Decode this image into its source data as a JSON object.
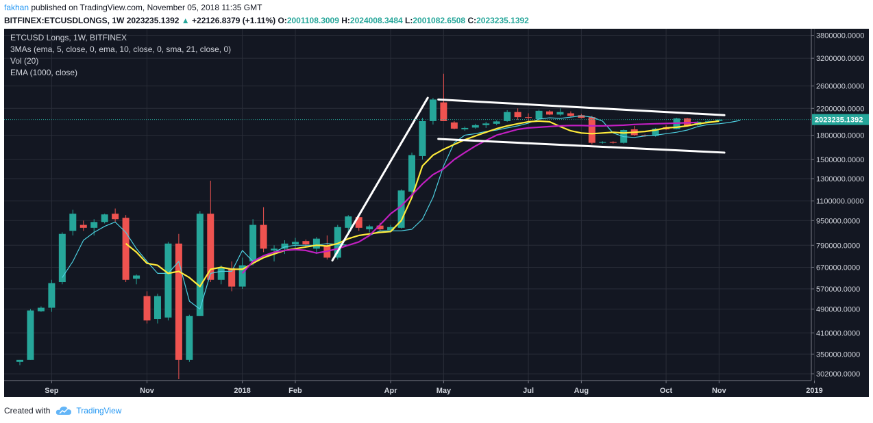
{
  "header": {
    "author": "fakhan",
    "published_text": "published on TradingView.com, November 05, 2018 11:35 GMT"
  },
  "quote": {
    "symbol_line": "BITFINEX:ETCUSDLONGS, 1W",
    "last": "2023235.1392",
    "change": "+22126.8379 (+1.11%)",
    "o_label": "O:",
    "o": "2001108.3009",
    "h_label": "H:",
    "h": "2024008.3484",
    "l_label": "L:",
    "l": "2001082.6508",
    "c_label": "C:",
    "c": "2023235.1392"
  },
  "legend": [
    "ETCUSD Longs, 1W, BITFINEX",
    "3MAs (ema, 5, close, 0, ema, 10, close, 0, sma, 21, close, 0)",
    "Vol (20)",
    "EMA (1000, close)"
  ],
  "footer": {
    "created_with": "Created with",
    "brand": "TradingView"
  },
  "colors": {
    "background": "#131722",
    "grid": "#2a2e39",
    "up": "#26a69a",
    "down": "#ef5350",
    "ema5": "#4dd0e1",
    "ema10": "#ffeb3b",
    "sma21": "#c21fc2",
    "trendline": "#ffffff",
    "price_line": "#26a69a",
    "axis_text": "#d1d4dc"
  },
  "chart_data": {
    "type": "candlestick",
    "scale": "log",
    "ylim": [
      290000,
      3950000
    ],
    "y_ticks": [
      302000,
      350000,
      410000,
      490000,
      570000,
      670000,
      790000,
      950000,
      1100000,
      1300000,
      1500000,
      1800000,
      2200000,
      2600000,
      3200000,
      3800000
    ],
    "y_tick_labels": [
      "302000.0000",
      "350000.0000",
      "410000.0000",
      "490000.0000",
      "570000.0000",
      "670000.0000",
      "790000.0000",
      "950000.0000",
      "1100000.0000",
      "1300000.0000",
      "1500000.0000",
      "1800000.0000",
      "2200000.0000",
      "2600000.0000",
      "3200000.0000",
      "3800000.0000"
    ],
    "x_ticks": [
      {
        "week": 3,
        "label": "Sep"
      },
      {
        "week": 12,
        "label": "Nov"
      },
      {
        "week": 21,
        "label": "2018"
      },
      {
        "week": 26,
        "label": "Feb"
      },
      {
        "week": 35,
        "label": "Apr"
      },
      {
        "week": 40,
        "label": "May"
      },
      {
        "week": 48,
        "label": "Jul"
      },
      {
        "week": 53,
        "label": "Aug"
      },
      {
        "week": 61,
        "label": "Oct"
      },
      {
        "week": 66,
        "label": "Nov"
      },
      {
        "week": 75,
        "label": "2019"
      }
    ],
    "last_price": 2023235.1392,
    "last_price_label": "2023235.1392",
    "candles": [
      {
        "o": 330000,
        "h": 335000,
        "l": 322000,
        "c": 335000
      },
      {
        "o": 335000,
        "h": 490000,
        "l": 335000,
        "c": 485000
      },
      {
        "o": 482000,
        "h": 500000,
        "l": 480000,
        "c": 495000
      },
      {
        "o": 495000,
        "h": 610000,
        "l": 480000,
        "c": 595000
      },
      {
        "o": 600000,
        "h": 870000,
        "l": 590000,
        "c": 860000
      },
      {
        "o": 880000,
        "h": 1030000,
        "l": 850000,
        "c": 1000000
      },
      {
        "o": 920000,
        "h": 950000,
        "l": 880000,
        "c": 900000
      },
      {
        "o": 900000,
        "h": 960000,
        "l": 850000,
        "c": 940000
      },
      {
        "o": 940000,
        "h": 1000000,
        "l": 930000,
        "c": 995000
      },
      {
        "o": 1000000,
        "h": 1040000,
        "l": 940000,
        "c": 960000
      },
      {
        "o": 970000,
        "h": 990000,
        "l": 600000,
        "c": 610000
      },
      {
        "o": 615000,
        "h": 635000,
        "l": 590000,
        "c": 630000
      },
      {
        "o": 540000,
        "h": 560000,
        "l": 440000,
        "c": 450000
      },
      {
        "o": 455000,
        "h": 550000,
        "l": 440000,
        "c": 540000
      },
      {
        "o": 460000,
        "h": 810000,
        "l": 450000,
        "c": 800000
      },
      {
        "o": 800000,
        "h": 860000,
        "l": 290000,
        "c": 335000
      },
      {
        "o": 335000,
        "h": 470000,
        "l": 330000,
        "c": 465000
      },
      {
        "o": 465000,
        "h": 1020000,
        "l": 465000,
        "c": 1000000
      },
      {
        "o": 1000000,
        "h": 1280000,
        "l": 600000,
        "c": 610000
      },
      {
        "o": 610000,
        "h": 680000,
        "l": 590000,
        "c": 665000
      },
      {
        "o": 665000,
        "h": 700000,
        "l": 560000,
        "c": 580000
      },
      {
        "o": 580000,
        "h": 720000,
        "l": 570000,
        "c": 680000
      },
      {
        "o": 700000,
        "h": 960000,
        "l": 680000,
        "c": 920000
      },
      {
        "o": 920000,
        "h": 1050000,
        "l": 750000,
        "c": 770000
      },
      {
        "o": 760000,
        "h": 790000,
        "l": 700000,
        "c": 770000
      },
      {
        "o": 770000,
        "h": 820000,
        "l": 740000,
        "c": 800000
      },
      {
        "o": 795000,
        "h": 835000,
        "l": 760000,
        "c": 810000
      },
      {
        "o": 815000,
        "h": 825000,
        "l": 780000,
        "c": 795000
      },
      {
        "o": 770000,
        "h": 840000,
        "l": 740000,
        "c": 830000
      },
      {
        "o": 790000,
        "h": 850000,
        "l": 710000,
        "c": 720000
      },
      {
        "o": 720000,
        "h": 920000,
        "l": 710000,
        "c": 905000
      },
      {
        "o": 900000,
        "h": 990000,
        "l": 860000,
        "c": 980000
      },
      {
        "o": 975000,
        "h": 985000,
        "l": 880000,
        "c": 900000
      },
      {
        "o": 890000,
        "h": 920000,
        "l": 870000,
        "c": 910000
      },
      {
        "o": 915000,
        "h": 935000,
        "l": 880000,
        "c": 890000
      },
      {
        "o": 885000,
        "h": 920000,
        "l": 870000,
        "c": 905000
      },
      {
        "o": 900000,
        "h": 1200000,
        "l": 895000,
        "c": 1190000
      },
      {
        "o": 1180000,
        "h": 1580000,
        "l": 1150000,
        "c": 1550000
      },
      {
        "o": 1540000,
        "h": 2050000,
        "l": 1500000,
        "c": 2000000
      },
      {
        "o": 2000000,
        "h": 2380000,
        "l": 1950000,
        "c": 2350000
      },
      {
        "o": 2300000,
        "h": 2850000,
        "l": 2000000,
        "c": 2000000
      },
      {
        "o": 1980000,
        "h": 2000000,
        "l": 1880000,
        "c": 1890000
      },
      {
        "o": 1880000,
        "h": 1920000,
        "l": 1860000,
        "c": 1900000
      },
      {
        "o": 1905000,
        "h": 1960000,
        "l": 1890000,
        "c": 1940000
      },
      {
        "o": 1940000,
        "h": 1990000,
        "l": 1900000,
        "c": 1965000
      },
      {
        "o": 1960000,
        "h": 2010000,
        "l": 1940000,
        "c": 1995000
      },
      {
        "o": 2000000,
        "h": 2170000,
        "l": 1990000,
        "c": 2140000
      },
      {
        "o": 2140000,
        "h": 2200000,
        "l": 2020000,
        "c": 2060000
      },
      {
        "o": 2060000,
        "h": 2120000,
        "l": 2000000,
        "c": 2050000
      },
      {
        "o": 2030000,
        "h": 2180000,
        "l": 2020000,
        "c": 2160000
      },
      {
        "o": 2150000,
        "h": 2170000,
        "l": 2090000,
        "c": 2100000
      },
      {
        "o": 2100000,
        "h": 2200000,
        "l": 2080000,
        "c": 2140000
      },
      {
        "o": 2120000,
        "h": 2150000,
        "l": 2070000,
        "c": 2080000
      },
      {
        "o": 2090000,
        "h": 2110000,
        "l": 2040000,
        "c": 2050000
      },
      {
        "o": 2060000,
        "h": 2080000,
        "l": 1680000,
        "c": 1700000
      },
      {
        "o": 1700000,
        "h": 1720000,
        "l": 1690000,
        "c": 1710000
      },
      {
        "o": 1710000,
        "h": 1720000,
        "l": 1690000,
        "c": 1700000
      },
      {
        "o": 1700000,
        "h": 1880000,
        "l": 1690000,
        "c": 1870000
      },
      {
        "o": 1880000,
        "h": 1930000,
        "l": 1790000,
        "c": 1800000
      },
      {
        "o": 1800000,
        "h": 1810000,
        "l": 1780000,
        "c": 1790000
      },
      {
        "o": 1790000,
        "h": 1900000,
        "l": 1780000,
        "c": 1890000
      },
      {
        "o": 1910000,
        "h": 1940000,
        "l": 1870000,
        "c": 1880000
      },
      {
        "o": 1885000,
        "h": 2050000,
        "l": 1880000,
        "c": 2040000
      },
      {
        "o": 2040000,
        "h": 2050000,
        "l": 1920000,
        "c": 1930000
      },
      {
        "o": 1940000,
        "h": 2000000,
        "l": 1930000,
        "c": 1990000
      },
      {
        "o": 1990000,
        "h": 2010000,
        "l": 1980000,
        "c": 2001108
      },
      {
        "o": 2001108,
        "h": 2024008,
        "l": 2001082,
        "c": 2023235
      }
    ],
    "series": [
      {
        "name": "ema 5",
        "color": "#4dd0e1",
        "start": 4,
        "values": [
          620000,
          700000,
          820000,
          870000,
          910000,
          940000,
          870000,
          770000,
          700000,
          640000,
          640000,
          700000,
          520000,
          490000,
          640000,
          650000,
          650000,
          760000,
          700000,
          720000,
          750000,
          780000,
          790000,
          790000,
          790000,
          800000,
          795000,
          790000,
          810000,
          850000,
          880000,
          880000,
          880000,
          890000,
          960000,
          1130000,
          1430000,
          1700000,
          1800000,
          1820000,
          1850000,
          1870000,
          1900000,
          1930000,
          1970000,
          2030000,
          2050000,
          2040000,
          2060000,
          2080000,
          2060000,
          2000000,
          1830000,
          1780000,
          1770000,
          1790000,
          1800000,
          1820000,
          1840000,
          1870000,
          1920000,
          1950000,
          1960000,
          1980000,
          2010000
        ]
      },
      {
        "name": "ema 10",
        "color": "#ffeb3b",
        "start": 10,
        "values": [
          800000,
          750000,
          690000,
          680000,
          640000,
          650000,
          620000,
          580000,
          660000,
          670000,
          660000,
          660000,
          690000,
          720000,
          740000,
          760000,
          770000,
          780000,
          790000,
          785000,
          800000,
          830000,
          850000,
          860000,
          870000,
          875000,
          950000,
          1130000,
          1430000,
          1550000,
          1620000,
          1680000,
          1740000,
          1790000,
          1840000,
          1890000,
          1930000,
          1960000,
          1990000,
          2000000,
          1990000,
          1920000,
          1860000,
          1830000,
          1820000,
          1830000,
          1840000,
          1830000,
          1840000,
          1850000,
          1870000,
          1900000,
          1910000,
          1930000,
          1960000,
          1980000,
          2000000
        ]
      },
      {
        "name": "sma 21",
        "color": "#c21fc2",
        "start": 21,
        "values": [
          640000,
          700000,
          730000,
          750000,
          760000,
          765000,
          760000,
          745000,
          755000,
          770000,
          790000,
          810000,
          850000,
          920000,
          1000000,
          1060000,
          1150000,
          1250000,
          1340000,
          1400000,
          1500000,
          1580000,
          1660000,
          1730000,
          1800000,
          1840000,
          1880000,
          1900000,
          1910000,
          1920000,
          1930000,
          1935000,
          1935000,
          1930000,
          1930000,
          1935000,
          1940000,
          1950000,
          1955000,
          1960000,
          1965000,
          1970000,
          1975000,
          1980000
        ]
      }
    ],
    "trendlines": [
      {
        "from": {
          "week": 29.5,
          "price": 705000
        },
        "to": {
          "week": 38.5,
          "price": 2380000
        }
      },
      {
        "from": {
          "week": 39.5,
          "price": 2350000
        },
        "to": {
          "week": 66.5,
          "price": 2090000
        }
      },
      {
        "from": {
          "week": 39.5,
          "price": 1750000
        },
        "to": {
          "week": 66.5,
          "price": 1580000
        }
      }
    ]
  }
}
